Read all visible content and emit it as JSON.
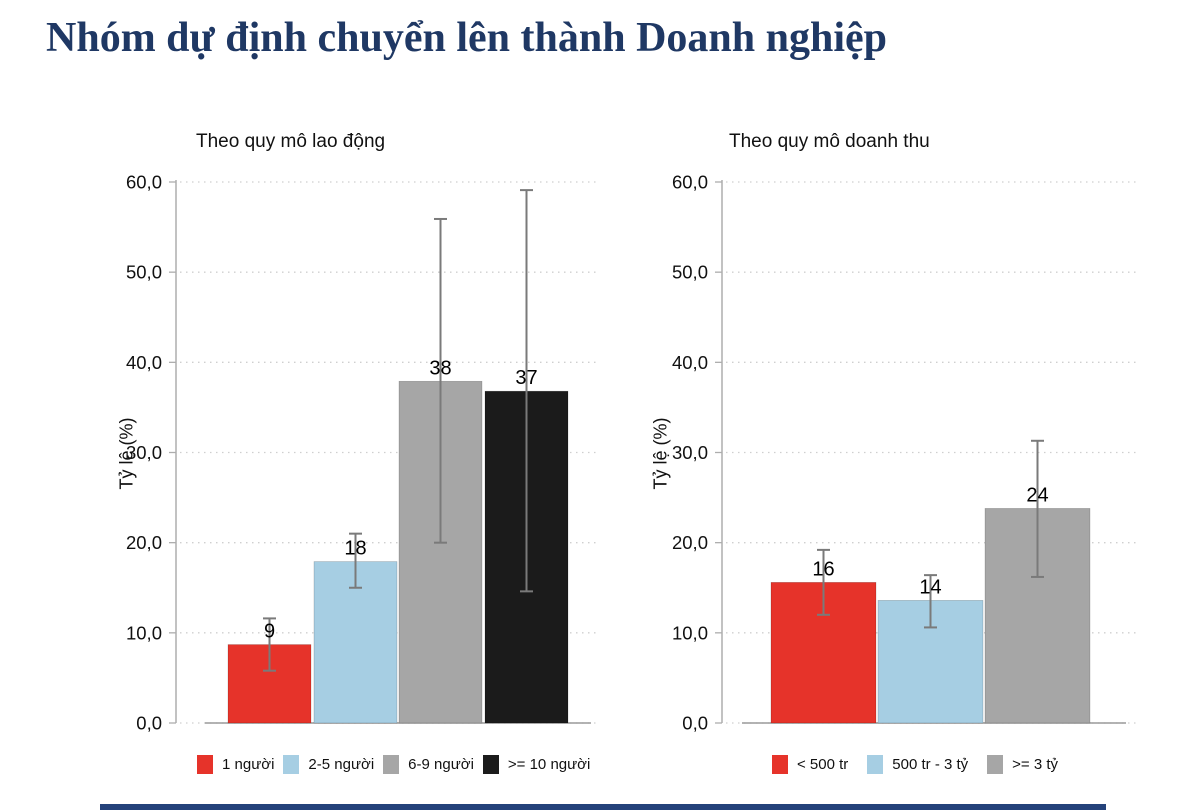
{
  "page": {
    "title": "Nhóm dự định chuyển lên thành Doanh nghiệp",
    "title_color": "#1F3864",
    "background_color": "#FFFFFF",
    "bottom_strip_color": "#24427A"
  },
  "style": {
    "text_color": "#111111",
    "grid_color": "#CFCFCF",
    "spine_color": "#ADADAD",
    "baseline_color": "#9A9A9A",
    "errorbar_color": "#7A7A7A",
    "bar_outline_color": "rgba(0,0,0,0.25)"
  },
  "chart_data": [
    {
      "type": "bar",
      "title": "Theo quy mô lao động",
      "ylabel": "Tỷ lệ (%)",
      "ylim": [
        0,
        60
      ],
      "yticks": [
        0,
        10,
        20,
        30,
        40,
        50,
        60
      ],
      "ytick_labels": [
        "0,0",
        "10,0",
        "20,0",
        "30,0",
        "40,0",
        "50,0",
        "60,0"
      ],
      "grid": "horizontal-dotted",
      "legend_position": "bottom",
      "categories": [
        "1 người",
        "2-5 người",
        "6-9 người",
        ">= 10 người"
      ],
      "values": [
        8.7,
        17.9,
        37.9,
        36.8
      ],
      "bar_labels": [
        "9",
        "18",
        "38",
        "37"
      ],
      "error_low": [
        5.8,
        15.0,
        20.0,
        14.6
      ],
      "error_high": [
        11.6,
        21.0,
        55.9,
        59.1
      ],
      "colors": [
        "#E6332A",
        "#A6CEE3",
        "#A6A6A6",
        "#1B1B1B"
      ]
    },
    {
      "type": "bar",
      "title": "Theo quy mô doanh thu",
      "ylabel": "Tỷ lệ (%)",
      "ylim": [
        0,
        60
      ],
      "yticks": [
        0,
        10,
        20,
        30,
        40,
        50,
        60
      ],
      "ytick_labels": [
        "0,0",
        "10,0",
        "20,0",
        "30,0",
        "40,0",
        "50,0",
        "60,0"
      ],
      "grid": "horizontal-dotted",
      "legend_position": "bottom",
      "categories": [
        "< 500 tr",
        "500 tr - 3 tỷ",
        ">= 3 tỷ"
      ],
      "values": [
        15.6,
        13.6,
        23.8
      ],
      "bar_labels": [
        "16",
        "14",
        "24"
      ],
      "error_low": [
        12.0,
        10.6,
        16.2
      ],
      "error_high": [
        19.2,
        16.4,
        31.3
      ],
      "colors": [
        "#E6332A",
        "#A6CEE3",
        "#A6A6A6"
      ]
    }
  ]
}
